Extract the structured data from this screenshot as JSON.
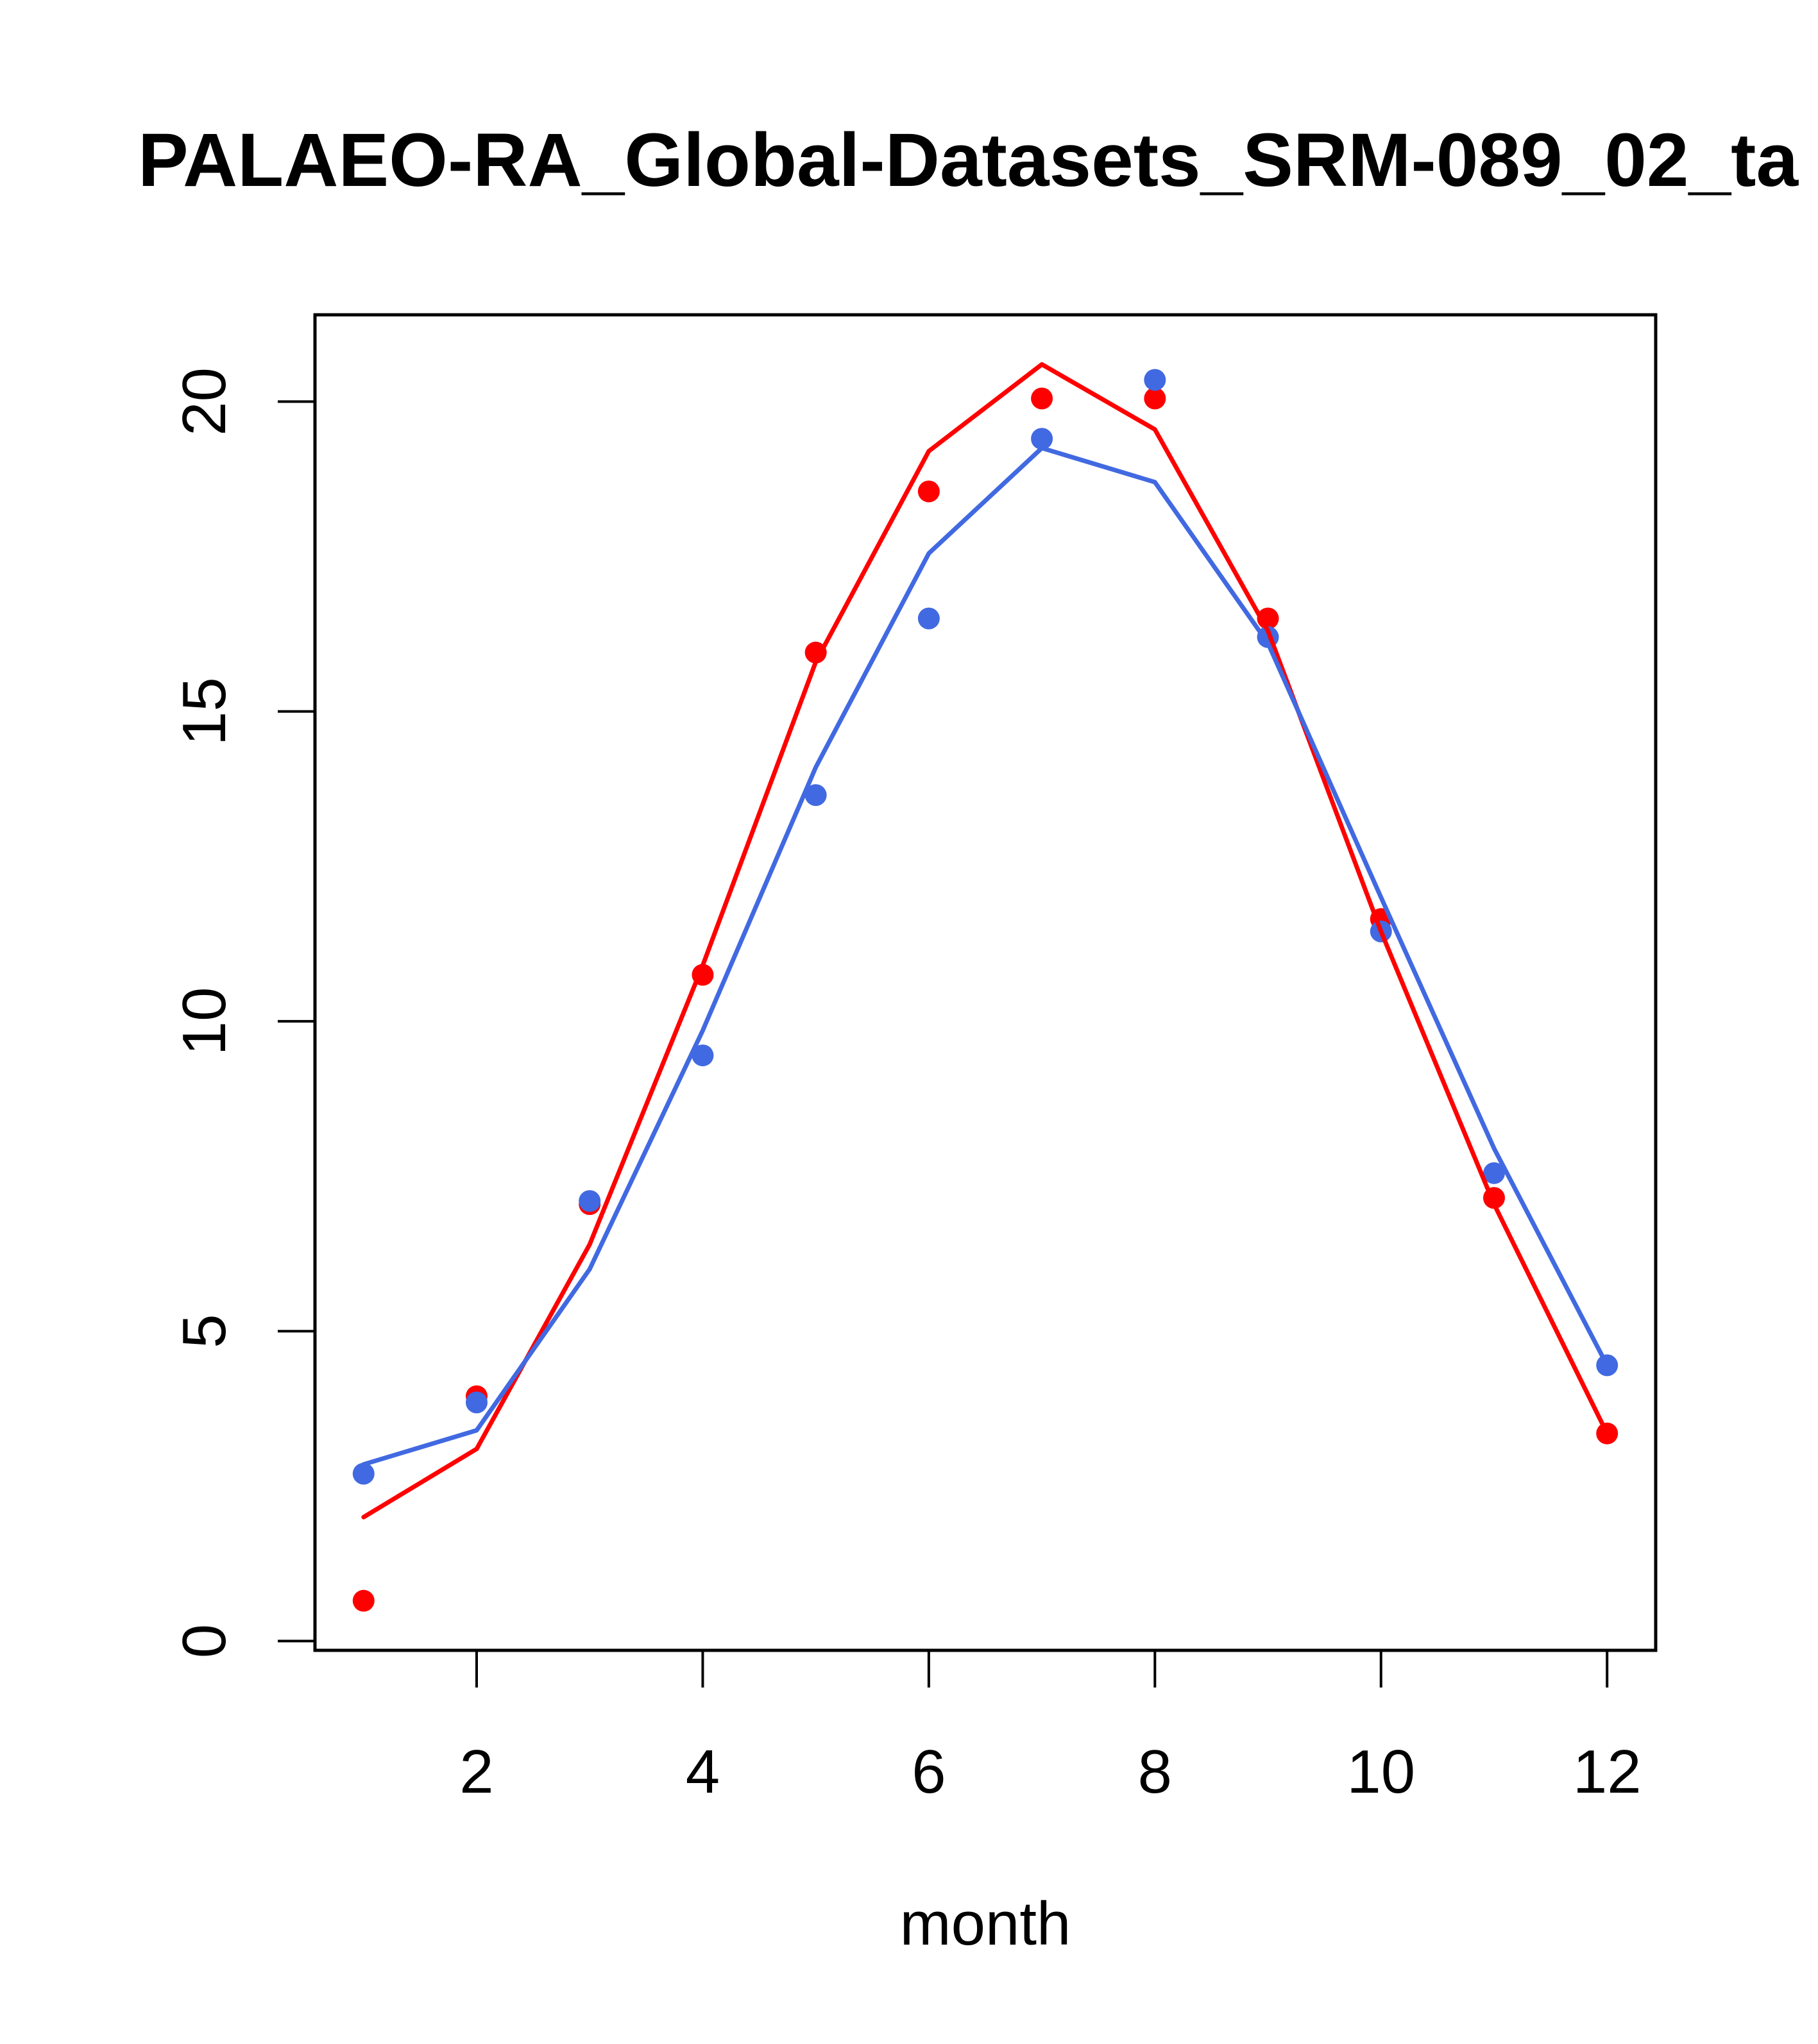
{
  "chart_data": {
    "type": "line",
    "title": "PALAEO-RA_Global-Datasets_SRM-089_02_ta",
    "xlabel": "month",
    "ylabel": "",
    "xlim": [
      0.57,
      12.43
    ],
    "ylim": [
      -0.15,
      21.4
    ],
    "xticks": [
      2,
      4,
      6,
      8,
      10,
      12
    ],
    "xtick_labels": [
      "2",
      "4",
      "6",
      "8",
      "10",
      "12"
    ],
    "yticks": [
      0,
      5,
      10,
      15,
      20
    ],
    "ytick_labels": [
      "0",
      "5",
      "10",
      "15",
      "20"
    ],
    "grid": false,
    "x": [
      1,
      2,
      3,
      4,
      5,
      6,
      7,
      8,
      9,
      10,
      11,
      12
    ],
    "series": [
      {
        "color": "#ff0000",
        "points": [
          0.65,
          3.95,
          7.05,
          10.75,
          15.95,
          18.55,
          20.05,
          20.05,
          16.5,
          11.65,
          7.15,
          3.35
        ],
        "line": [
          2.0,
          3.1,
          6.4,
          10.9,
          15.8,
          19.2,
          20.6,
          19.55,
          16.3,
          11.45,
          7.05,
          3.35
        ]
      },
      {
        "color": "#4169e1",
        "points": [
          2.7,
          3.85,
          7.1,
          9.45,
          13.65,
          16.5,
          19.4,
          20.35,
          16.2,
          11.45,
          7.55,
          4.45
        ],
        "line": [
          2.85,
          3.4,
          6.0,
          9.85,
          14.1,
          17.55,
          19.25,
          18.7,
          16.1,
          12.0,
          7.95,
          4.45
        ]
      }
    ]
  }
}
